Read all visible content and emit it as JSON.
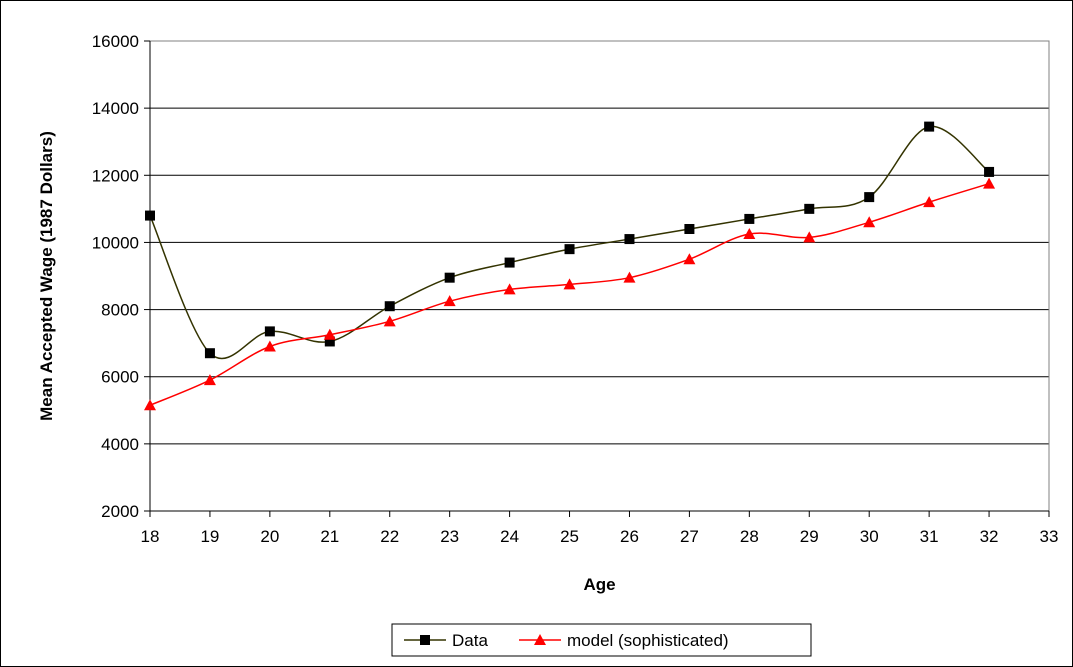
{
  "chart_data": {
    "type": "line",
    "title": "",
    "xlabel": "Age",
    "ylabel": "Mean Accepted Wage (1987 Dollars)",
    "xlim": [
      18,
      33
    ],
    "ylim": [
      2000,
      16000
    ],
    "x_ticks": [
      18,
      19,
      20,
      21,
      22,
      23,
      24,
      25,
      26,
      27,
      28,
      29,
      30,
      31,
      32,
      33
    ],
    "y_ticks": [
      2000,
      4000,
      6000,
      8000,
      10000,
      12000,
      14000,
      16000
    ],
    "grid": "horizontal",
    "legend_position": "bottom",
    "x": [
      18,
      19,
      20,
      21,
      22,
      23,
      24,
      25,
      26,
      27,
      28,
      29,
      30,
      31,
      32
    ],
    "series": [
      {
        "name": "Data",
        "color": "#333300",
        "marker": "square",
        "values": [
          10800,
          6700,
          7350,
          7050,
          8100,
          8950,
          9400,
          9800,
          10100,
          10400,
          10700,
          11000,
          11350,
          13450,
          12100
        ]
      },
      {
        "name": "model (sophisticated)",
        "color": "#ff0000",
        "marker": "triangle",
        "values": [
          5150,
          5900,
          6900,
          7250,
          7650,
          8250,
          8600,
          8750,
          8950,
          9500,
          10250,
          10150,
          10600,
          11200,
          11750
        ]
      }
    ]
  }
}
